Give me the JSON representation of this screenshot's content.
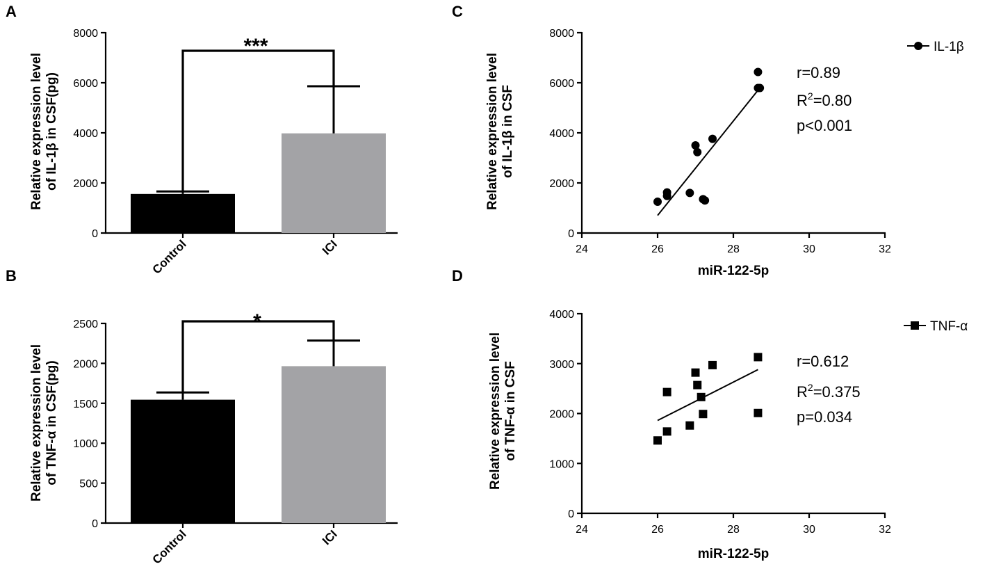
{
  "chart_data": [
    {
      "id": "A",
      "type": "bar",
      "panel_label": "A",
      "ylabel_lines": [
        "Relative expression level",
        "of IL-1β in CSF(pg)"
      ],
      "categories": [
        "Control",
        "ICI"
      ],
      "values": [
        1560,
        3980
      ],
      "errors": [
        100,
        1880
      ],
      "bar_colors": [
        "#000000",
        "#a3a3a6"
      ],
      "ylim": [
        0,
        8000
      ],
      "yticks": [
        0,
        2000,
        4000,
        6000,
        8000
      ],
      "significance": "***"
    },
    {
      "id": "B",
      "type": "bar",
      "panel_label": "B",
      "ylabel_lines": [
        "Relative expression level",
        "of TNF-α in CSF(pg)"
      ],
      "categories": [
        "Control",
        "ICI"
      ],
      "values": [
        1545,
        1965
      ],
      "errors": [
        90,
        320
      ],
      "bar_colors": [
        "#000000",
        "#a3a3a6"
      ],
      "ylim": [
        0,
        2500
      ],
      "yticks": [
        0,
        500,
        1000,
        1500,
        2000,
        2500
      ],
      "significance": "*"
    },
    {
      "id": "C",
      "type": "scatter",
      "panel_label": "C",
      "marker": "circle",
      "legend": "IL-1β",
      "xlabel": "miR-122-5p",
      "ylabel_lines": [
        "Relative expression level",
        "of IL-1β in CSF"
      ],
      "xlim": [
        24,
        32
      ],
      "xticks": [
        24,
        26,
        28,
        30,
        32
      ],
      "ylim": [
        0,
        8000
      ],
      "yticks": [
        0,
        2000,
        4000,
        6000,
        8000
      ],
      "points": [
        {
          "x": 26.0,
          "y": 1250
        },
        {
          "x": 26.25,
          "y": 1480
        },
        {
          "x": 26.25,
          "y": 1620
        },
        {
          "x": 26.85,
          "y": 1600
        },
        {
          "x": 27.0,
          "y": 3500
        },
        {
          "x": 27.05,
          "y": 3230
        },
        {
          "x": 27.2,
          "y": 1350
        },
        {
          "x": 27.25,
          "y": 1300
        },
        {
          "x": 27.45,
          "y": 3760
        },
        {
          "x": 28.65,
          "y": 6430
        },
        {
          "x": 28.65,
          "y": 5790
        },
        {
          "x": 28.7,
          "y": 5790
        }
      ],
      "fit_line": [
        {
          "x": 26.0,
          "y": 700
        },
        {
          "x": 28.65,
          "y": 5700
        }
      ],
      "stats": {
        "r": "r=0.89",
        "r2_prefix": "R",
        "r2_sup": "2",
        "r2_value": "=0.80",
        "p": "p<0.001"
      }
    },
    {
      "id": "D",
      "type": "scatter",
      "panel_label": "D",
      "marker": "square",
      "legend": "TNF-α",
      "xlabel": "miR-122-5p",
      "ylabel_lines": [
        "Relative expression level",
        "of TNF-α in CSF"
      ],
      "xlim": [
        24,
        32
      ],
      "xticks": [
        24,
        26,
        28,
        30,
        32
      ],
      "ylim": [
        0,
        4000
      ],
      "yticks": [
        0,
        1000,
        2000,
        3000,
        4000
      ],
      "points": [
        {
          "x": 26.0,
          "y": 1460
        },
        {
          "x": 26.25,
          "y": 1640
        },
        {
          "x": 26.25,
          "y": 2430
        },
        {
          "x": 26.85,
          "y": 1760
        },
        {
          "x": 27.0,
          "y": 2820
        },
        {
          "x": 27.05,
          "y": 2570
        },
        {
          "x": 27.15,
          "y": 2330
        },
        {
          "x": 27.2,
          "y": 1990
        },
        {
          "x": 27.45,
          "y": 2970
        },
        {
          "x": 28.65,
          "y": 3130
        },
        {
          "x": 28.65,
          "y": 2010
        }
      ],
      "fit_line": [
        {
          "x": 26.0,
          "y": 1860
        },
        {
          "x": 28.65,
          "y": 2880
        }
      ],
      "stats": {
        "r": "r=0.612",
        "r2_prefix": "R",
        "r2_sup": "2",
        "r2_value": "=0.375",
        "p": "p=0.034"
      }
    }
  ]
}
